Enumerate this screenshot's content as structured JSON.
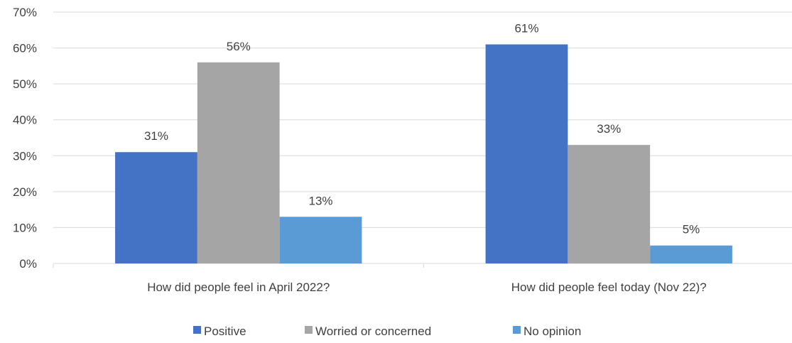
{
  "chart_data": {
    "type": "bar",
    "title": "",
    "xlabel": "",
    "ylabel": "",
    "categories": [
      "How did people feel in April 2022?",
      "How did people feel today (Nov 22)?"
    ],
    "series": [
      {
        "name": "Positive",
        "color": "#4472C4",
        "values": [
          31,
          61
        ],
        "labels": [
          "31%",
          "61%"
        ]
      },
      {
        "name": "Worried or concerned",
        "color": "#A5A5A5",
        "values": [
          56,
          33
        ],
        "labels": [
          "56%",
          "33%"
        ]
      },
      {
        "name": "No opinion",
        "color": "#5B9BD5",
        "values": [
          13,
          5
        ],
        "labels": [
          "13%",
          "5%"
        ]
      }
    ],
    "ylim": [
      0,
      70
    ],
    "yticks": [
      "0%",
      "10%",
      "20%",
      "30%",
      "40%",
      "50%",
      "60%",
      "70%"
    ],
    "grid": true,
    "legend_position": "bottom"
  }
}
